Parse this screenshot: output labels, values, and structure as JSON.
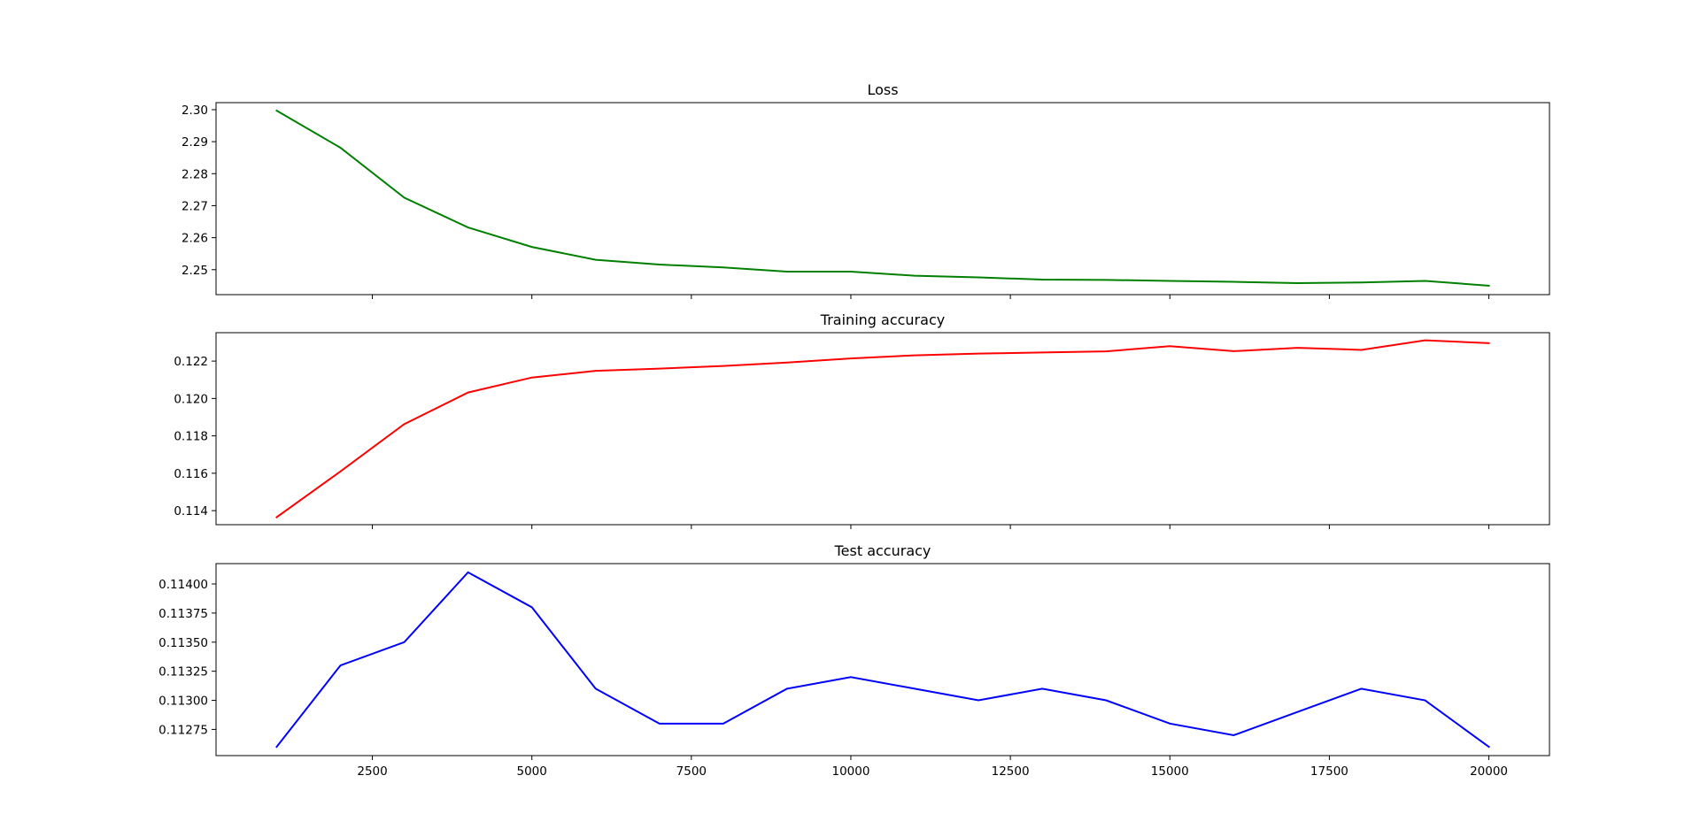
{
  "chart_data": [
    {
      "type": "line",
      "title": "Loss",
      "xlabel": "",
      "ylabel": "",
      "x": [
        1000,
        2000,
        3000,
        4000,
        5000,
        6000,
        7000,
        8000,
        9000,
        10000,
        11000,
        12000,
        13000,
        14000,
        15000,
        16000,
        17000,
        18000,
        19000,
        20000
      ],
      "series": [
        {
          "color": "#008000",
          "values": [
            2.2997,
            2.2881,
            2.2725,
            2.2632,
            2.2571,
            2.2531,
            2.2516,
            2.2507,
            2.2494,
            2.2494,
            2.2481,
            2.2476,
            2.2469,
            2.2468,
            2.2465,
            2.2462,
            2.2458,
            2.246,
            2.2465,
            2.245
          ]
        }
      ],
      "xlim": [
        50,
        20950
      ],
      "ylim": [
        2.2422,
        2.3022
      ],
      "xticks": [
        2500,
        5000,
        7500,
        10000,
        12500,
        15000,
        17500,
        20000
      ],
      "xticklabels_visible": false,
      "yticks": [
        2.25,
        2.26,
        2.27,
        2.28,
        2.29,
        2.3
      ],
      "yticklabels": [
        "2.25",
        "2.26",
        "2.27",
        "2.28",
        "2.29",
        "2.30"
      ],
      "grid": false,
      "legend": null
    },
    {
      "type": "line",
      "title": "Training accuracy",
      "xlabel": "",
      "ylabel": "",
      "x": [
        1000,
        2000,
        3000,
        4000,
        5000,
        6000,
        7000,
        8000,
        9000,
        10000,
        11000,
        12000,
        13000,
        14000,
        15000,
        16000,
        17000,
        18000,
        19000,
        20000
      ],
      "series": [
        {
          "color": "#ff0000",
          "values": [
            0.11365,
            0.1161,
            0.11863,
            0.12032,
            0.12112,
            0.12148,
            0.1216,
            0.12174,
            0.12192,
            0.12214,
            0.12231,
            0.1224,
            0.12246,
            0.12252,
            0.1228,
            0.12253,
            0.12271,
            0.1226,
            0.12311,
            0.12296
          ]
        }
      ],
      "xlim": [
        50,
        20950
      ],
      "ylim": [
        0.11325,
        0.12352
      ],
      "xticks": [
        2500,
        5000,
        7500,
        10000,
        12500,
        15000,
        17500,
        20000
      ],
      "xticklabels_visible": false,
      "yticks": [
        0.114,
        0.116,
        0.118,
        0.12,
        0.122
      ],
      "yticklabels": [
        "0.114",
        "0.116",
        "0.118",
        "0.120",
        "0.122"
      ],
      "grid": false,
      "legend": null
    },
    {
      "type": "line",
      "title": "Test accuracy",
      "xlabel": "",
      "ylabel": "",
      "x": [
        1000,
        2000,
        3000,
        4000,
        5000,
        6000,
        7000,
        8000,
        9000,
        10000,
        11000,
        12000,
        13000,
        14000,
        15000,
        16000,
        17000,
        18000,
        19000,
        20000
      ],
      "series": [
        {
          "color": "#0000ff",
          "values": [
            0.1126,
            0.1133,
            0.1135,
            0.1141,
            0.1138,
            0.1131,
            0.1128,
            0.1128,
            0.1131,
            0.1132,
            0.1131,
            0.113,
            0.1131,
            0.113,
            0.1128,
            0.1127,
            0.1129,
            0.1131,
            0.113,
            0.1126
          ]
        }
      ],
      "xlim": [
        50,
        20950
      ],
      "ylim": [
        0.112525,
        0.114175
      ],
      "xticks": [
        2500,
        5000,
        7500,
        10000,
        12500,
        15000,
        17500,
        20000
      ],
      "xticklabels": [
        "2500",
        "5000",
        "7500",
        "10000",
        "12500",
        "15000",
        "17500",
        "20000"
      ],
      "xticklabels_visible": true,
      "yticks": [
        0.11275,
        0.113,
        0.11325,
        0.1135,
        0.11375,
        0.114
      ],
      "yticklabels": [
        "0.11275",
        "0.11300",
        "0.11325",
        "0.11350",
        "0.11375",
        "0.11400"
      ],
      "grid": false,
      "legend": null
    }
  ]
}
